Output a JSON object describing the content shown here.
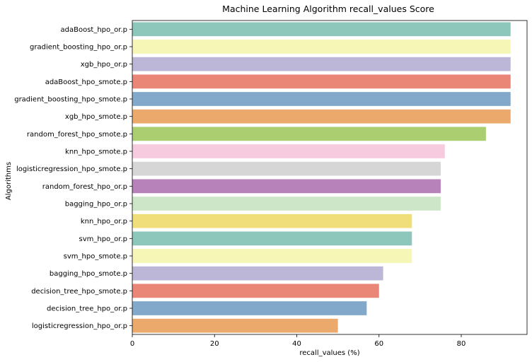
{
  "chart_data": {
    "type": "bar",
    "orientation": "horizontal",
    "title": "Machine Learning Algorithm recall_values Score",
    "xlabel": "recall_values (%)",
    "ylabel": "Algorithms",
    "xlim": [
      0,
      96
    ],
    "xticks": [
      0,
      20,
      40,
      60,
      80
    ],
    "grid": false,
    "categories": [
      "adaBoost_hpo_or.p",
      "gradient_boosting_hpo_or.p",
      "xgb_hpo_or.p",
      "adaBoost_hpo_smote.p",
      "gradient_boosting_hpo_smote.p",
      "xgb_hpo_smote.p",
      "random_forest_hpo_smote.p",
      "knn_hpo_smote.p",
      "logisticregression_hpo_smote.p",
      "random_forest_hpo_or.p",
      "bagging_hpo_or.p",
      "knn_hpo_or.p",
      "svm_hpo_or.p",
      "svm_hpo_smote.p",
      "bagging_hpo_smote.p",
      "decision_tree_hpo_smote.p",
      "decision_tree_hpo_or.p",
      "logisticregression_hpo_or.p"
    ],
    "values": [
      92,
      92,
      92,
      92,
      92,
      92,
      86,
      76,
      75,
      75,
      75,
      68,
      68,
      68,
      61,
      60,
      57,
      50
    ],
    "colors": [
      "#8dc7bc",
      "#f6f6b6",
      "#bcb7d6",
      "#ea8677",
      "#82a9c9",
      "#ebaa6c",
      "#abce70",
      "#f6cbdf",
      "#d6d6d6",
      "#b682b9",
      "#cde6c8",
      "#f0de7a",
      "#8dc7bc",
      "#f6f6b6",
      "#bcb7d6",
      "#ea8677",
      "#82a9c9",
      "#ebaa6c"
    ]
  }
}
